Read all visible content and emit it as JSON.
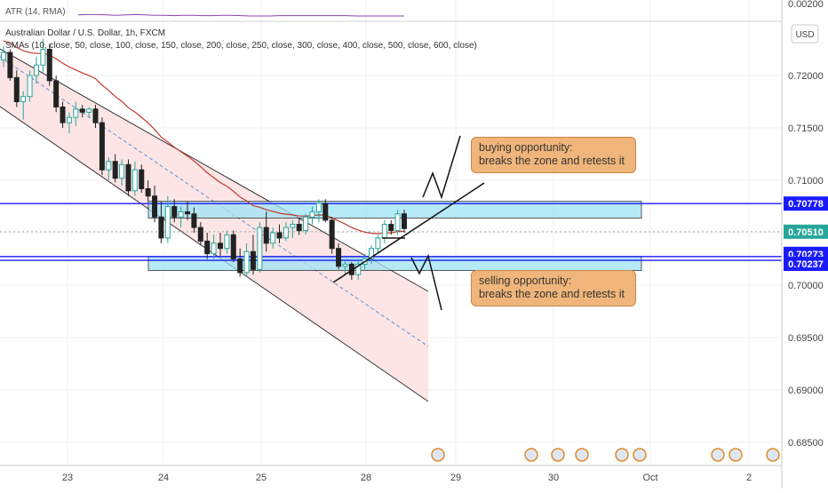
{
  "chart_data": {
    "type": "candlestick",
    "symbol_title": "Australian Dollar / U.S. Dollar, 1h, FXCM",
    "indicator_atr_label": "ATR (14, RMA)",
    "indicator_sma_label": "SMAs (10, close, 50, close, 100, close, 150, close, 200, close, 250, close, 300, close, 400, close, 500, close, 600, close)",
    "currency_label": "USD",
    "x_tick_labels": [
      "23",
      "24",
      "25",
      "28",
      "29",
      "30",
      "Oct",
      "2"
    ],
    "y_tick_labels": [
      "0.72000",
      "0.71500",
      "0.71000",
      "0.70500",
      "0.70000",
      "0.69500",
      "0.69000",
      "0.68500"
    ],
    "atr_tick_label": "0.00200",
    "price_levels": [
      {
        "label": "0.70778",
        "value": 0.70778,
        "color": "#1a1aff"
      },
      {
        "label": "0.70510",
        "value": 0.7051,
        "color": "#26a69a"
      },
      {
        "label": "0.70273",
        "value": 0.70273,
        "color": "#1a1aff"
      },
      {
        "label": "0.70237",
        "value": 0.70237,
        "color": "#1a1aff"
      }
    ],
    "zones": [
      {
        "name": "resistance-zone",
        "top": 0.708,
        "bottom": 0.7064
      },
      {
        "name": "support-zone",
        "top": 0.7027,
        "bottom": 0.7014
      }
    ],
    "annotations": [
      {
        "name": "buying-callout",
        "lines": [
          "buying opportunity:",
          "breaks the zone and retests it"
        ]
      },
      {
        "name": "selling-callout",
        "lines": [
          "selling opportunity:",
          "breaks the zone and retests it"
        ]
      }
    ],
    "candles": [
      [
        0.7215,
        0.7228,
        0.7208,
        0.7222
      ],
      [
        0.7222,
        0.7225,
        0.7195,
        0.7198
      ],
      [
        0.7198,
        0.7205,
        0.717,
        0.7175
      ],
      [
        0.7175,
        0.7185,
        0.7158,
        0.718
      ],
      [
        0.718,
        0.7205,
        0.7175,
        0.72
      ],
      [
        0.72,
        0.7218,
        0.7192,
        0.721
      ],
      [
        0.721,
        0.7235,
        0.7203,
        0.7225
      ],
      [
        0.7225,
        0.723,
        0.719,
        0.7195
      ],
      [
        0.7195,
        0.72,
        0.7165,
        0.717
      ],
      [
        0.717,
        0.7175,
        0.715,
        0.7155
      ],
      [
        0.7155,
        0.7165,
        0.7145,
        0.716
      ],
      [
        0.716,
        0.7175,
        0.7152,
        0.7168
      ],
      [
        0.7168,
        0.7172,
        0.716,
        0.7165
      ],
      [
        0.7165,
        0.717,
        0.716,
        0.7168
      ],
      [
        0.7168,
        0.7172,
        0.715,
        0.7155
      ],
      [
        0.7155,
        0.716,
        0.7105,
        0.711
      ],
      [
        0.711,
        0.7122,
        0.71,
        0.7118
      ],
      [
        0.7118,
        0.7125,
        0.7098,
        0.7102
      ],
      [
        0.7102,
        0.712,
        0.7095,
        0.7115
      ],
      [
        0.7115,
        0.712,
        0.7085,
        0.709
      ],
      [
        0.709,
        0.7118,
        0.7085,
        0.711
      ],
      [
        0.711,
        0.7115,
        0.7088,
        0.7092
      ],
      [
        0.7092,
        0.71,
        0.708,
        0.7085
      ],
      [
        0.7085,
        0.7095,
        0.706,
        0.7065
      ],
      [
        0.7065,
        0.708,
        0.704,
        0.7045
      ],
      [
        0.7045,
        0.7085,
        0.704,
        0.7075
      ],
      [
        0.7075,
        0.7082,
        0.706,
        0.7065
      ],
      [
        0.7065,
        0.7075,
        0.7055,
        0.707
      ],
      [
        0.707,
        0.708,
        0.7062,
        0.7068
      ],
      [
        0.7068,
        0.7074,
        0.705,
        0.7055
      ],
      [
        0.7055,
        0.706,
        0.7038,
        0.7042
      ],
      [
        0.7042,
        0.705,
        0.7025,
        0.703
      ],
      [
        0.703,
        0.7048,
        0.7025,
        0.704
      ],
      [
        0.704,
        0.705,
        0.7028,
        0.7035
      ],
      [
        0.7035,
        0.7052,
        0.703,
        0.7048
      ],
      [
        0.7048,
        0.7052,
        0.7022,
        0.7025
      ],
      [
        0.7025,
        0.7035,
        0.7008,
        0.7012
      ],
      [
        0.7012,
        0.704,
        0.7008,
        0.7032
      ],
      [
        0.7032,
        0.7048,
        0.701,
        0.7015
      ],
      [
        0.7015,
        0.706,
        0.7012,
        0.7055
      ],
      [
        0.7055,
        0.707,
        0.7032,
        0.704
      ],
      [
        0.704,
        0.7055,
        0.7035,
        0.705
      ],
      [
        0.705,
        0.7058,
        0.704,
        0.7045
      ],
      [
        0.7045,
        0.706,
        0.7042,
        0.7055
      ],
      [
        0.7055,
        0.7062,
        0.7045,
        0.7058
      ],
      [
        0.7058,
        0.7064,
        0.7048,
        0.7052
      ],
      [
        0.7052,
        0.7068,
        0.7048,
        0.7065
      ],
      [
        0.7065,
        0.7075,
        0.7058,
        0.707
      ],
      [
        0.707,
        0.7082,
        0.706,
        0.7078
      ],
      [
        0.7078,
        0.7082,
        0.706,
        0.7062
      ],
      [
        0.7062,
        0.7065,
        0.703,
        0.7035
      ],
      [
        0.7035,
        0.704,
        0.7015,
        0.7018
      ],
      [
        0.7018,
        0.7025,
        0.701,
        0.702
      ],
      [
        0.702,
        0.7022,
        0.7005,
        0.701
      ],
      [
        0.701,
        0.7025,
        0.7005,
        0.702
      ],
      [
        0.702,
        0.703,
        0.7015,
        0.7025
      ],
      [
        0.7025,
        0.7038,
        0.702,
        0.7035
      ],
      [
        0.7035,
        0.7048,
        0.703,
        0.7045
      ],
      [
        0.7045,
        0.7062,
        0.704,
        0.7058
      ],
      [
        0.7058,
        0.7062,
        0.7048,
        0.7052
      ],
      [
        0.7052,
        0.7072,
        0.7048,
        0.7068
      ],
      [
        0.7068,
        0.7072,
        0.705,
        0.7054
      ]
    ],
    "atr": [
      0.0023,
      0.0024,
      0.0024,
      0.0023,
      0.0022,
      0.0023,
      0.0024,
      0.0023,
      0.0022,
      0.0022,
      0.0021,
      0.0022,
      0.0022,
      0.0021,
      0.0021,
      0.0022,
      0.0022,
      0.0021,
      0.002,
      0.002,
      0.002,
      0.0021,
      0.0021,
      0.0021,
      0.0021,
      0.0021,
      0.0021,
      0.0021,
      0.0021,
      0.002,
      0.002,
      0.002,
      0.002,
      0.002,
      0.002
    ]
  }
}
